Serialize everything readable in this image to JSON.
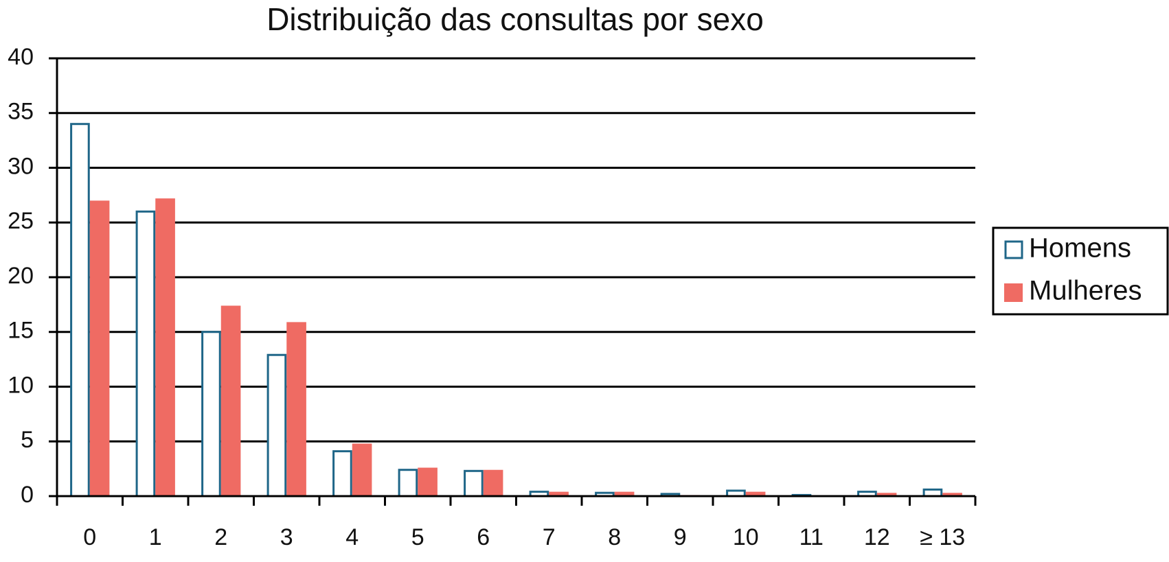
{
  "chart_data": {
    "type": "bar",
    "title": "Distribuição das consultas por sexo",
    "categories": [
      "0",
      "1",
      "2",
      "3",
      "4",
      "5",
      "6",
      "7",
      "8",
      "9",
      "10",
      "11",
      "12",
      "≥ 13"
    ],
    "series": [
      {
        "name": "Homens",
        "color": "#1f6688",
        "outline": true,
        "values": [
          34,
          26,
          15,
          12.9,
          4.1,
          2.4,
          2.3,
          0.4,
          0.3,
          0.2,
          0.5,
          0.1,
          0.4,
          0.6
        ]
      },
      {
        "name": "Mulheres",
        "color": "#ef6b63",
        "outline": false,
        "values": [
          27,
          27.2,
          17.4,
          15.9,
          4.8,
          2.6,
          2.4,
          0.4,
          0.4,
          0.1,
          0.4,
          0,
          0.3,
          0.3
        ]
      }
    ],
    "ylim": [
      0,
      40
    ],
    "yticks": [
      0,
      5,
      10,
      15,
      20,
      25,
      30,
      35,
      40
    ],
    "grid": true,
    "legend": "right"
  }
}
